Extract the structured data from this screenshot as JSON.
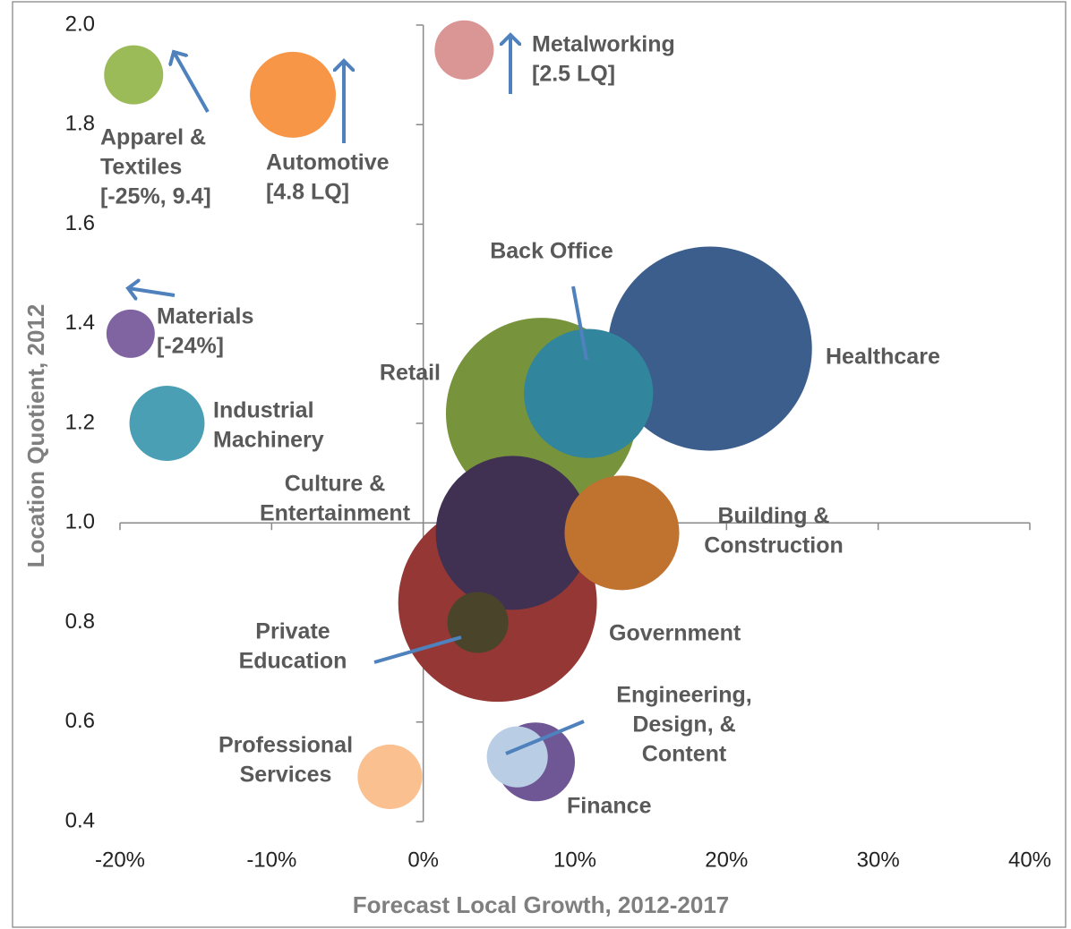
{
  "chart_data": {
    "type": "bubble",
    "x_label": "Forecast Local Growth, 2012-2017",
    "y_label": "Location Quotient, 2012",
    "xlim": [
      -20,
      40
    ],
    "ylim": [
      0.4,
      2.0
    ],
    "xticks": [
      {
        "value": -20,
        "label": "-20%"
      },
      {
        "value": -10,
        "label": "-10%"
      },
      {
        "value": 0,
        "label": "0%"
      },
      {
        "value": 10,
        "label": "10%"
      },
      {
        "value": 20,
        "label": "20%"
      },
      {
        "value": 30,
        "label": "30%"
      },
      {
        "value": 40,
        "label": "40%"
      }
    ],
    "yticks": [
      0.4,
      0.6,
      0.8,
      {
        "value": 1.0,
        "label": "1.0"
      },
      1.2,
      1.4,
      1.6,
      1.8,
      {
        "value": 2.0,
        "label": "2.0"
      }
    ],
    "points": [
      {
        "label": [
          "Apparel &",
          "Textiles",
          "[-25%, 9.4]"
        ],
        "x": -19.1,
        "y": 1.9,
        "size": 10.9,
        "color": "#9bbb59"
      },
      {
        "label": [
          "Automotive",
          "[4.8 LQ]"
        ],
        "x": -8.6,
        "y": 1.86,
        "size": 23,
        "color": "#f79646"
      },
      {
        "label": [
          "Metalworking",
          "[2.5 LQ]"
        ],
        "x": 2.7,
        "y": 1.95,
        "size": 10.9,
        "color": "#d99694"
      },
      {
        "label": [
          "Materials",
          "[-24%]"
        ],
        "x": -19.3,
        "y": 1.38,
        "size": 7.3,
        "color": "#8064a2"
      },
      {
        "label": [
          "Industrial",
          "Machinery"
        ],
        "x": -16.9,
        "y": 1.2,
        "size": 17.6,
        "color": "#4a9fb5"
      },
      {
        "label": [
          "Retail"
        ],
        "x": 7.8,
        "y": 1.22,
        "size": 114,
        "color": "#77933c"
      },
      {
        "label": [
          "Healthcare"
        ],
        "x": 18.9,
        "y": 1.35,
        "size": 130,
        "color": "#3b5e8c"
      },
      {
        "label": [
          "Back Office"
        ],
        "x": 10.9,
        "y": 1.26,
        "size": 52,
        "color": "#31859c"
      },
      {
        "label": [
          "Government"
        ],
        "x": 4.9,
        "y": 0.84,
        "size": 123,
        "color": "#953735"
      },
      {
        "label": [
          "Culture &",
          "Entertainment"
        ],
        "x": 5.9,
        "y": 0.98,
        "size": 74,
        "color": "#403152"
      },
      {
        "label": [
          "Building &",
          "Construction"
        ],
        "x": 13.1,
        "y": 0.98,
        "size": 41,
        "color": "#c0722f"
      },
      {
        "label": [
          "Private",
          "Education"
        ],
        "x": 3.6,
        "y": 0.8,
        "size": 11.6,
        "color": "#4a452a"
      },
      {
        "label": [
          "Finance"
        ],
        "x": 7.4,
        "y": 0.52,
        "size": 19.4,
        "color": "#6f5796"
      },
      {
        "label": [
          "Engineering,",
          "Design, &",
          "Content"
        ],
        "x": 6.2,
        "y": 0.53,
        "size": 11.6,
        "color": "#b9cde5"
      },
      {
        "label": [
          "Professional",
          "Services"
        ],
        "x": -2.2,
        "y": 0.49,
        "size": 13,
        "color": "#fac090"
      }
    ]
  }
}
